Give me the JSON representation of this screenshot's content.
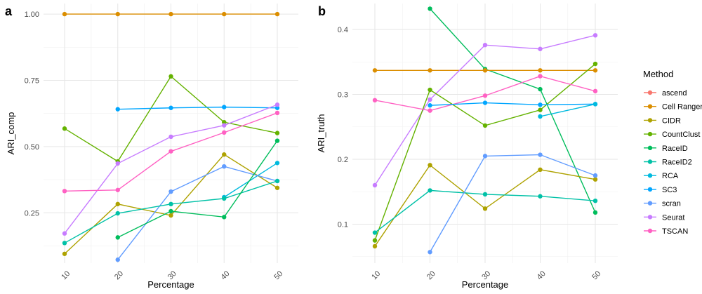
{
  "legend": {
    "title": "Method",
    "position": "right"
  },
  "colors": {
    "ascend": "#F8766D",
    "Cell Ranger": "#DB8E00",
    "CIDR": "#AEA200",
    "CountClust": "#64B200",
    "RaceID": "#00BD5C",
    "RaceID2": "#00C1A7",
    "RCA": "#00BADE",
    "SC3": "#00A6FF",
    "scran": "#619CFF",
    "Seurat": "#C77CFF",
    "TSCAN": "#FF61C3"
  },
  "chart_data": [
    {
      "panel": "a",
      "type": "line",
      "xlabel": "Percentage",
      "ylabel": "ARI_comp",
      "x": [
        10,
        20,
        30,
        40,
        50
      ],
      "xlim": [
        10,
        50
      ],
      "ylim": [
        0.06,
        1.04
      ],
      "yticks": [
        0.25,
        0.5,
        0.75,
        1.0
      ],
      "ytick_labels": [
        "0.25",
        "0.50",
        "0.75",
        "1.00"
      ],
      "grid": true,
      "series": [
        {
          "name": "Cell Ranger",
          "values": [
            1.0,
            1.0,
            1.0,
            1.0,
            1.0
          ]
        },
        {
          "name": "CountClust",
          "values": [
            0.568,
            0.444,
            0.765,
            0.592,
            0.551
          ]
        },
        {
          "name": "SC3",
          "values": [
            null,
            0.641,
            0.646,
            0.649,
            0.646
          ]
        },
        {
          "name": "RCA",
          "values": [
            null,
            null,
            null,
            0.309,
            0.438
          ]
        },
        {
          "name": "Seurat",
          "values": [
            0.172,
            0.436,
            0.537,
            0.58,
            0.658
          ]
        },
        {
          "name": "TSCAN",
          "values": [
            0.332,
            0.336,
            0.482,
            0.553,
            0.627
          ]
        },
        {
          "name": "CIDR",
          "values": [
            0.095,
            0.283,
            0.24,
            0.47,
            0.344
          ]
        },
        {
          "name": "scran",
          "values": [
            null,
            0.073,
            0.33,
            0.425,
            0.37
          ]
        },
        {
          "name": "RaceID2",
          "values": [
            0.136,
            0.248,
            0.283,
            0.304,
            0.37
          ]
        },
        {
          "name": "RaceID",
          "values": [
            null,
            0.157,
            0.256,
            0.234,
            0.522
          ]
        }
      ]
    },
    {
      "panel": "b",
      "type": "line",
      "xlabel": "Percentage",
      "ylabel": "ARI_truth",
      "x": [
        10,
        20,
        30,
        40,
        50
      ],
      "xlim": [
        10,
        50
      ],
      "ylim": [
        0.04,
        0.44
      ],
      "yticks": [
        0.1,
        0.2,
        0.3,
        0.4
      ],
      "ytick_labels": [
        "0.1",
        "0.2",
        "0.3",
        "0.4"
      ],
      "grid": true,
      "series": [
        {
          "name": "RaceID",
          "values": [
            null,
            0.432,
            0.339,
            0.308,
            0.118
          ]
        },
        {
          "name": "Cell Ranger",
          "values": [
            0.337,
            0.337,
            0.337,
            0.337,
            0.337
          ]
        },
        {
          "name": "Seurat",
          "values": [
            0.16,
            0.292,
            0.376,
            0.37,
            0.391
          ]
        },
        {
          "name": "CountClust",
          "values": [
            0.075,
            0.307,
            0.252,
            0.276,
            0.347
          ]
        },
        {
          "name": "TSCAN",
          "values": [
            0.291,
            0.275,
            0.298,
            0.328,
            0.305
          ]
        },
        {
          "name": "SC3",
          "values": [
            null,
            0.283,
            0.287,
            0.284,
            0.285
          ]
        },
        {
          "name": "RCA",
          "values": [
            null,
            null,
            null,
            0.266,
            0.285
          ]
        },
        {
          "name": "CIDR",
          "values": [
            0.066,
            0.191,
            0.124,
            0.184,
            0.169
          ]
        },
        {
          "name": "RaceID2",
          "values": [
            0.087,
            0.152,
            0.146,
            0.143,
            0.136
          ]
        },
        {
          "name": "scran",
          "values": [
            null,
            0.057,
            0.205,
            0.207,
            0.175
          ]
        }
      ]
    }
  ]
}
